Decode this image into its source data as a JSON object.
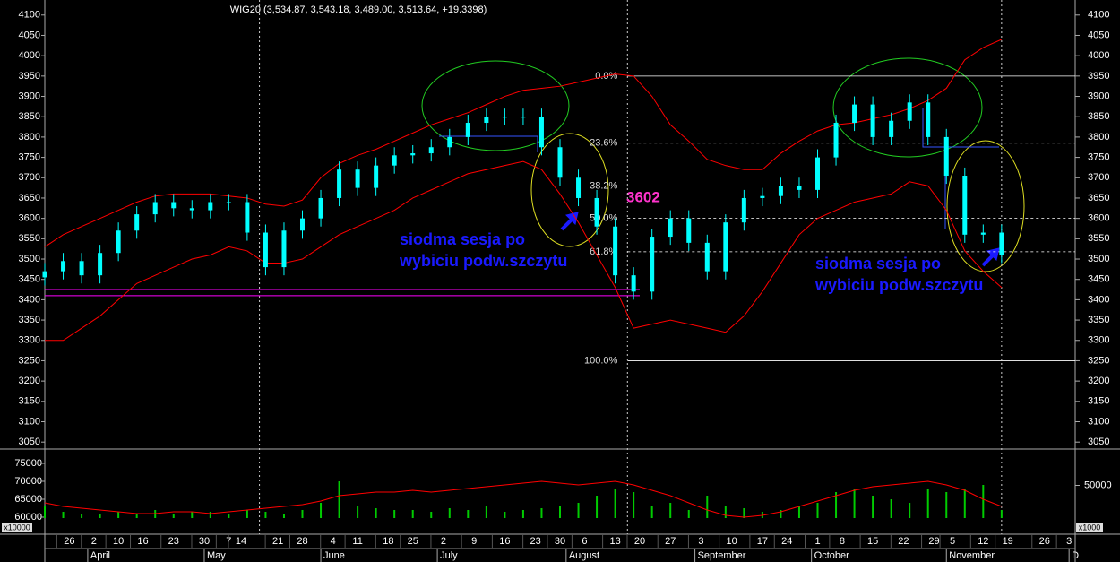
{
  "chart_data": {
    "type": "candlestick",
    "title": "WIG20 (3,534.87, 3,543.18, 3,489.00, 3,513.64, +19.3398)",
    "x": [
      0,
      3,
      6,
      9,
      12,
      15,
      18,
      21,
      24,
      27,
      30,
      33,
      36,
      39,
      42,
      45,
      48,
      51,
      54,
      57,
      60,
      63,
      66,
      69,
      72,
      75,
      78,
      81,
      84,
      87,
      90,
      93,
      96,
      99,
      102,
      105,
      108,
      111,
      114,
      117,
      120,
      123,
      126,
      129,
      132,
      135,
      138,
      141,
      144,
      147,
      150,
      153,
      156
    ],
    "open": [
      3455,
      3470,
      3495,
      3460,
      3515,
      3570,
      3610,
      3640,
      3625,
      3620,
      3640,
      3640,
      3565,
      3480,
      3570,
      3600,
      3650,
      3720,
      3675,
      3730,
      3755,
      3760,
      3775,
      3800,
      3835,
      3850,
      3850,
      3850,
      3775,
      3700,
      3650,
      3580,
      3460,
      3420,
      3555,
      3600,
      3540,
      3470,
      3590,
      3650,
      3655,
      3680,
      3670,
      3750,
      3835,
      3880,
      3800,
      3840,
      3885,
      3800,
      3705,
      3560,
      3565
    ],
    "high": [
      3490,
      3515,
      3515,
      3535,
      3590,
      3630,
      3660,
      3660,
      3645,
      3660,
      3660,
      3660,
      3585,
      3590,
      3620,
      3670,
      3740,
      3740,
      3750,
      3775,
      3780,
      3795,
      3820,
      3855,
      3870,
      3870,
      3870,
      3870,
      3795,
      3720,
      3670,
      3600,
      3480,
      3575,
      3620,
      3620,
      3560,
      3610,
      3670,
      3675,
      3700,
      3700,
      3770,
      3855,
      3900,
      3900,
      3860,
      3905,
      3905,
      3820,
      3725,
      3585,
      3585
    ],
    "low": [
      3435,
      3450,
      3440,
      3440,
      3495,
      3550,
      3590,
      3605,
      3600,
      3600,
      3620,
      3545,
      3460,
      3460,
      3550,
      3580,
      3630,
      3655,
      3655,
      3710,
      3735,
      3740,
      3755,
      3780,
      3815,
      3830,
      3830,
      3755,
      3680,
      3630,
      3560,
      3440,
      3400,
      3400,
      3535,
      3520,
      3450,
      3450,
      3570,
      3630,
      3635,
      3650,
      3650,
      3730,
      3815,
      3780,
      3780,
      3820,
      3780,
      3685,
      3540,
      3540,
      3490
    ],
    "close": [
      3470,
      3495,
      3460,
      3515,
      3570,
      3610,
      3640,
      3625,
      3620,
      3640,
      3640,
      3565,
      3480,
      3570,
      3600,
      3650,
      3720,
      3675,
      3730,
      3755,
      3760,
      3775,
      3800,
      3835,
      3850,
      3850,
      3850,
      3775,
      3700,
      3650,
      3580,
      3460,
      3420,
      3555,
      3600,
      3540,
      3470,
      3590,
      3650,
      3655,
      3680,
      3670,
      3750,
      3835,
      3880,
      3800,
      3840,
      3885,
      3800,
      3705,
      3560,
      3565,
      3510
    ],
    "candle_color": "#00ffff",
    "overlays": [
      {
        "color": "#ff0000",
        "values": [
          3530,
          3560,
          3580,
          3600,
          3620,
          3640,
          3655,
          3660,
          3660,
          3660,
          3655,
          3650,
          3635,
          3630,
          3645,
          3700,
          3735,
          3755,
          3770,
          3790,
          3810,
          3830,
          3845,
          3860,
          3880,
          3900,
          3915,
          3920,
          3925,
          3935,
          3945,
          3955,
          3950,
          3900,
          3830,
          3790,
          3745,
          3730,
          3720,
          3720,
          3760,
          3790,
          3815,
          3830,
          3835,
          3845,
          3855,
          3870,
          3890,
          3920,
          3990,
          4020,
          4040
        ]
      },
      {
        "color": "#ff0000",
        "values": [
          3300,
          3300,
          3330,
          3360,
          3400,
          3440,
          3460,
          3480,
          3500,
          3510,
          3530,
          3520,
          3490,
          3490,
          3500,
          3530,
          3560,
          3580,
          3600,
          3620,
          3650,
          3670,
          3690,
          3710,
          3720,
          3730,
          3740,
          3720,
          3660,
          3590,
          3510,
          3430,
          3330,
          3340,
          3350,
          3340,
          3330,
          3320,
          3360,
          3420,
          3490,
          3560,
          3600,
          3620,
          3640,
          3650,
          3660,
          3690,
          3680,
          3620,
          3520,
          3470,
          3430
        ]
      }
    ],
    "xlim": [
      0,
      168
    ],
    "xticks": [
      {
        "value": 4,
        "label": "26"
      },
      {
        "value": 8,
        "label": "2"
      },
      {
        "value": 12,
        "label": "10"
      },
      {
        "value": 16,
        "label": "16"
      },
      {
        "value": 21,
        "label": "23"
      },
      {
        "value": 26,
        "label": "30"
      },
      {
        "value": 30,
        "label": "7"
      },
      {
        "value": 32,
        "label": "14"
      },
      {
        "value": 38,
        "label": "21"
      },
      {
        "value": 42,
        "label": "28"
      },
      {
        "value": 47,
        "label": "4"
      },
      {
        "value": 51,
        "label": "11"
      },
      {
        "value": 56,
        "label": "18"
      },
      {
        "value": 60,
        "label": "25"
      },
      {
        "value": 65,
        "label": "2"
      },
      {
        "value": 70,
        "label": "9"
      },
      {
        "value": 75,
        "label": "16"
      },
      {
        "value": 80,
        "label": "23"
      },
      {
        "value": 84,
        "label": "30"
      },
      {
        "value": 88,
        "label": "6"
      },
      {
        "value": 93,
        "label": "13"
      },
      {
        "value": 97,
        "label": "20"
      },
      {
        "value": 102,
        "label": "27"
      },
      {
        "value": 107,
        "label": "3"
      },
      {
        "value": 112,
        "label": "10"
      },
      {
        "value": 117,
        "label": "17"
      },
      {
        "value": 121,
        "label": "24"
      },
      {
        "value": 126,
        "label": "1"
      },
      {
        "value": 130,
        "label": "8"
      },
      {
        "value": 135,
        "label": "15"
      },
      {
        "value": 140,
        "label": "22"
      },
      {
        "value": 145,
        "label": "29"
      },
      {
        "value": 148,
        "label": "5"
      },
      {
        "value": 153,
        "label": "12"
      },
      {
        "value": 157,
        "label": "19"
      },
      {
        "value": 163,
        "label": "26"
      },
      {
        "value": 167,
        "label": "3"
      }
    ],
    "month_ticks": [
      {
        "value": 7,
        "label": "April"
      },
      {
        "value": 26,
        "label": "May"
      },
      {
        "value": 45,
        "label": "June"
      },
      {
        "value": 64,
        "label": "July"
      },
      {
        "value": 85,
        "label": "August"
      },
      {
        "value": 106,
        "label": "September"
      },
      {
        "value": 125,
        "label": "October"
      },
      {
        "value": 147,
        "label": "November"
      },
      {
        "value": 167,
        "label": "D"
      }
    ],
    "ylim": [
      3035,
      4137
    ],
    "yticks": [
      4100,
      4050,
      4000,
      3950,
      3900,
      3850,
      3800,
      3750,
      3700,
      3650,
      3600,
      3550,
      3500,
      3450,
      3400,
      3350,
      3300,
      3250,
      3200,
      3150,
      3100,
      3050
    ],
    "vertical_markers": [
      35,
      95,
      156
    ],
    "fibonacci": {
      "start": 95,
      "color": "#ffffff",
      "levels": [
        {
          "value": 3950,
          "label": "0.0%"
        },
        {
          "value": 3785,
          "label": "23.6%"
        },
        {
          "value": 3680,
          "label": "38.2%"
        },
        {
          "value": 3600,
          "label": "50.0%"
        },
        {
          "value": 3518,
          "label": "61.8%"
        },
        {
          "value": 3250,
          "label": "100.0%"
        }
      ]
    },
    "hlines": [
      {
        "value": 3425,
        "end": 97,
        "color": "#ff00ff"
      },
      {
        "value": 3410,
        "end": 97,
        "color": "#ff00ff"
      }
    ],
    "annotations": {
      "level": "3602",
      "notes": [
        [
          "siodma sesja po",
          "wybiciu podw.szczytu"
        ],
        [
          "siodma sesja po",
          "wybiciu podw.szczytu"
        ]
      ]
    },
    "volume": {
      "color": "#00cc00",
      "values": [
        63000,
        61500,
        61000,
        61000,
        61500,
        61000,
        62000,
        61000,
        61500,
        61500,
        61000,
        62000,
        61500,
        61000,
        62000,
        64000,
        70000,
        63000,
        62500,
        62000,
        62000,
        61500,
        62500,
        62000,
        63000,
        61500,
        62000,
        62500,
        63000,
        64000,
        66000,
        68000,
        67000,
        63000,
        64000,
        62000,
        66000,
        63000,
        62500,
        61500,
        62000,
        63000,
        64000,
        67000,
        68000,
        66000,
        65000,
        64000,
        68000,
        67000,
        68000,
        69000,
        62000
      ],
      "ma_color": "#ff0000",
      "ma_values": [
        64000,
        63000,
        62500,
        62000,
        61500,
        61000,
        61000,
        61500,
        61500,
        61000,
        61500,
        62000,
        62500,
        63000,
        63500,
        64500,
        66000,
        66500,
        67000,
        67000,
        67500,
        67000,
        67500,
        68000,
        68500,
        69000,
        69500,
        70000,
        69500,
        69000,
        69500,
        70000,
        69000,
        67500,
        66000,
        64000,
        62000,
        60500,
        60000,
        60500,
        61500,
        63000,
        64500,
        66000,
        67500,
        68500,
        69000,
        69500,
        70000,
        69000,
        67500,
        65000,
        63000
      ],
      "ylim": [
        59750,
        78000
      ],
      "yticks": [
        75000,
        70000,
        65000,
        60000
      ],
      "y2lim": [
        35000,
        65000
      ],
      "y2ticks": [
        50000
      ],
      "unit_left": "x10000",
      "unit_right": "x1000"
    }
  }
}
